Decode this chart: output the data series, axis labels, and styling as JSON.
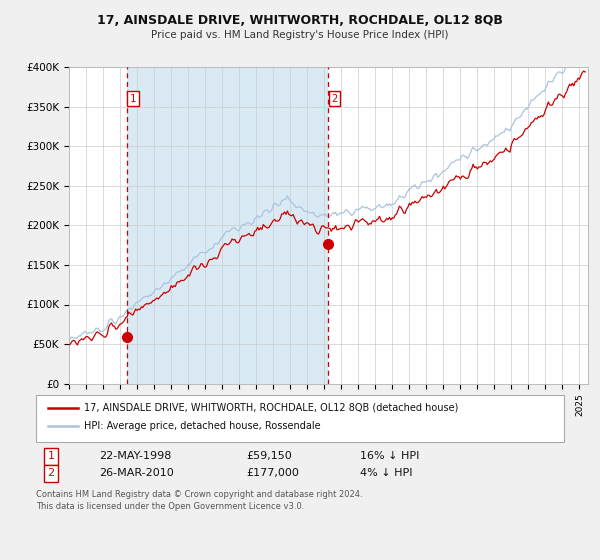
{
  "title": "17, AINSDALE DRIVE, WHITWORTH, ROCHDALE, OL12 8QB",
  "subtitle": "Price paid vs. HM Land Registry's House Price Index (HPI)",
  "legend_line1": "17, AINSDALE DRIVE, WHITWORTH, ROCHDALE, OL12 8QB (detached house)",
  "legend_line2": "HPI: Average price, detached house, Rossendale",
  "annotation1_label": "1",
  "annotation1_date": "22-MAY-1998",
  "annotation1_price": "£59,150",
  "annotation1_hpi": "16% ↓ HPI",
  "annotation1_year": 1998.38,
  "annotation1_value": 59150,
  "annotation2_label": "2",
  "annotation2_date": "26-MAR-2010",
  "annotation2_price": "£177,000",
  "annotation2_hpi": "4% ↓ HPI",
  "annotation2_year": 2010.23,
  "annotation2_value": 177000,
  "xmin": 1995,
  "xmax": 2025.5,
  "ymin": 0,
  "ymax": 400000,
  "yticks": [
    0,
    50000,
    100000,
    150000,
    200000,
    250000,
    300000,
    350000,
    400000
  ],
  "ytick_labels": [
    "£0",
    "£50K",
    "£100K",
    "£150K",
    "£200K",
    "£250K",
    "£300K",
    "£350K",
    "£400K"
  ],
  "hpi_color": "#aac4df",
  "price_color": "#cc0000",
  "shading_color": "#daeaf5",
  "vline_color": "#cc0000",
  "grid_color": "#cccccc",
  "background_color": "#f0f0f0",
  "plot_bg_color": "#ffffff",
  "footer": "Contains HM Land Registry data © Crown copyright and database right 2024.\nThis data is licensed under the Open Government Licence v3.0."
}
